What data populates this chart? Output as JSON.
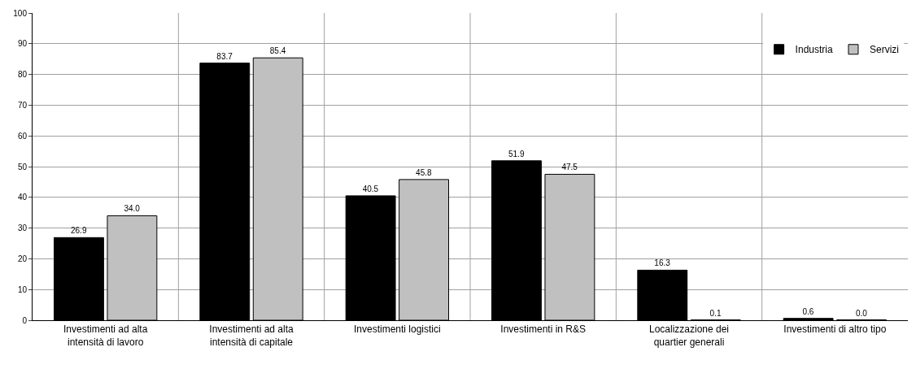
{
  "chart_data": {
    "type": "bar",
    "categories": [
      "Investimenti ad alta intensità di lavoro",
      "Investimenti ad alta intensità di capitale",
      "Investimenti logistici",
      "Investimenti in R&S",
      "Localizzazione dei quartier generali",
      "Investimenti di altro tipo"
    ],
    "series": [
      {
        "name": "Industria",
        "color": "#000000",
        "values": [
          26.9,
          83.7,
          40.5,
          51.9,
          16.3,
          0.6
        ],
        "value_labels": [
          "26.9",
          "83.7",
          "40.5",
          "51.9",
          "16.3",
          "0.6"
        ]
      },
      {
        "name": "Servizi",
        "color": "#c0c0c0",
        "values": [
          34.0,
          85.4,
          45.8,
          47.5,
          0.1,
          0.0
        ],
        "value_labels": [
          "34.0",
          "85.4",
          "45.8",
          "47.5",
          "0.1",
          "0.0"
        ]
      }
    ],
    "ylim": [
      0,
      100
    ],
    "yticks": [
      0,
      10,
      20,
      30,
      40,
      50,
      60,
      70,
      80,
      90,
      100
    ],
    "grid": true,
    "legend": "top right"
  }
}
